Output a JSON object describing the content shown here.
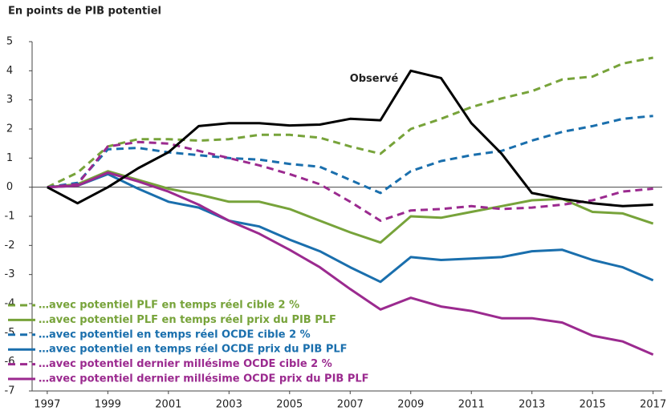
{
  "chart_data": {
    "type": "line",
    "title": "En points de PIB potentiel",
    "x": [
      1997,
      1998,
      1999,
      2000,
      2001,
      2002,
      2003,
      2004,
      2005,
      2006,
      2007,
      2008,
      2009,
      2010,
      2011,
      2012,
      2013,
      2014,
      2015,
      2016,
      2017
    ],
    "xlim": [
      1996.5,
      2017.3
    ],
    "xticks": [
      1997,
      1999,
      2001,
      2003,
      2005,
      2007,
      2009,
      2011,
      2013,
      2015,
      2017
    ],
    "ylim": [
      -7,
      5
    ],
    "yticks": [
      -7,
      -6,
      -5,
      -4,
      -3,
      -2,
      -1,
      0,
      1,
      2,
      3,
      4,
      5
    ],
    "legend": "lower left",
    "observed": {
      "name": "Observé",
      "color": "#000000",
      "values": [
        0,
        -0.55,
        0,
        0.65,
        1.2,
        2.1,
        2.2,
        2.2,
        2.12,
        2.15,
        2.35,
        2.3,
        4.0,
        3.75,
        2.2,
        1.15,
        -0.2,
        -0.4,
        -0.55,
        -0.65,
        -0.6
      ]
    },
    "series": [
      {
        "name": "…avec potentiel PLF en temps réel cible 2 %",
        "color": "#77a33a",
        "dash": true,
        "values": [
          0,
          0.5,
          1.4,
          1.65,
          1.65,
          1.6,
          1.65,
          1.8,
          1.8,
          1.7,
          1.4,
          1.15,
          2.0,
          2.35,
          2.75,
          3.05,
          3.3,
          3.7,
          3.8,
          4.25,
          4.45
        ]
      },
      {
        "name": "…avec potentiel PLF en temps réel prix du PIB PLF",
        "color": "#77a33a",
        "dash": false,
        "values": [
          0,
          0.1,
          0.55,
          0.25,
          -0.05,
          -0.25,
          -0.5,
          -0.5,
          -0.75,
          -1.15,
          -1.55,
          -1.9,
          -1.0,
          -1.05,
          -0.85,
          -0.65,
          -0.45,
          -0.4,
          -0.85,
          -0.9,
          -1.25
        ]
      },
      {
        "name": "…avec potentiel en temps réel OCDE cible 2 %",
        "color": "#1a6fad",
        "dash": true,
        "values": [
          0,
          0.15,
          1.3,
          1.35,
          1.2,
          1.1,
          1.0,
          0.95,
          0.8,
          0.7,
          0.25,
          -0.2,
          0.55,
          0.9,
          1.1,
          1.25,
          1.6,
          1.9,
          2.1,
          2.35,
          2.45
        ]
      },
      {
        "name": "…avec potentiel en temps réel OCDE prix du PIB PLF",
        "color": "#1a6fad",
        "dash": false,
        "values": [
          0,
          0.05,
          0.45,
          -0.05,
          -0.5,
          -0.7,
          -1.15,
          -1.35,
          -1.8,
          -2.2,
          -2.75,
          -3.25,
          -2.4,
          -2.5,
          -2.45,
          -2.4,
          -2.2,
          -2.15,
          -2.5,
          -2.75,
          -3.2
        ]
      },
      {
        "name": "…avec potentiel dernier millésime OCDE cible 2 %",
        "color": "#9b2a8f",
        "dash": true,
        "values": [
          0,
          0.1,
          1.4,
          1.55,
          1.5,
          1.25,
          1.0,
          0.75,
          0.45,
          0.1,
          -0.5,
          -1.15,
          -0.8,
          -0.75,
          -0.65,
          -0.75,
          -0.7,
          -0.6,
          -0.45,
          -0.15,
          -0.05
        ]
      },
      {
        "name": "…avec potentiel dernier millésime OCDE prix du PIB PLF",
        "color": "#9b2a8f",
        "dash": false,
        "values": [
          0,
          0.05,
          0.5,
          0.2,
          -0.15,
          -0.6,
          -1.15,
          -1.6,
          -2.15,
          -2.75,
          -3.5,
          -4.2,
          -3.8,
          -4.1,
          -4.25,
          -4.5,
          -4.5,
          -4.65,
          -5.1,
          -5.3,
          -5.75
        ]
      }
    ]
  }
}
